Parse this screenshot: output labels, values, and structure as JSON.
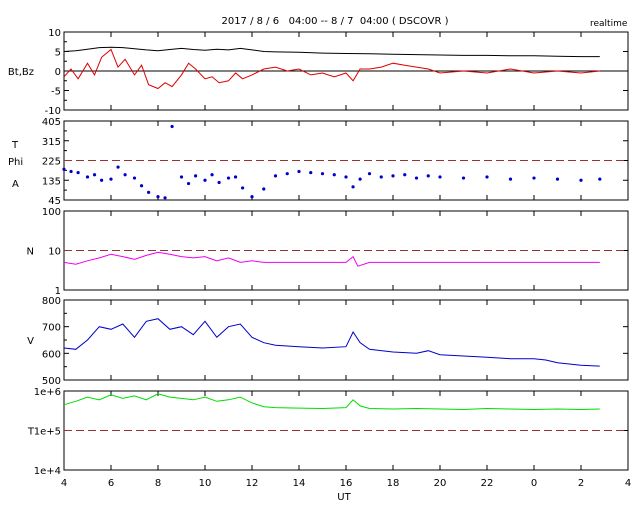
{
  "header": {
    "title": "2017 / 8 / 6   04:00 -- 8 / 7  04:00 ( DSCOVR )",
    "badge": "realtime"
  },
  "chart_data": [
    {
      "type": "line",
      "name": "magnetic-field",
      "ylabel": "Bt,Bz",
      "ylim": [
        -10,
        10
      ],
      "yticks": [
        "10",
        "5",
        "0",
        "-5",
        "-10"
      ],
      "xlim": [
        4,
        28.8
      ],
      "reference_lines": [
        {
          "y": 0,
          "style": "solid",
          "color": "#000000"
        }
      ],
      "series": [
        {
          "color": "#000000",
          "x": [
            4.0,
            4.5,
            5.0,
            5.5,
            6.0,
            6.5,
            7.0,
            7.5,
            8.0,
            8.5,
            9.0,
            9.5,
            10.0,
            10.5,
            11.0,
            11.5,
            12.0,
            12.5,
            13.0,
            14.0,
            15.0,
            16.0,
            17.0,
            18.0,
            19.0,
            20.0,
            21.0,
            22.0,
            23.0,
            24.0,
            25.0,
            26.0,
            26.8
          ],
          "y": [
            5.0,
            5.2,
            5.6,
            6.0,
            6.1,
            6.0,
            5.7,
            5.4,
            5.2,
            5.5,
            5.8,
            5.5,
            5.3,
            5.6,
            5.4,
            5.8,
            5.4,
            5.0,
            4.9,
            4.8,
            4.6,
            4.5,
            4.4,
            4.3,
            4.2,
            4.1,
            4.0,
            4.0,
            3.9,
            3.9,
            3.8,
            3.7,
            3.7
          ]
        },
        {
          "color": "#dd0000",
          "x": [
            4.0,
            4.3,
            4.6,
            5.0,
            5.3,
            5.6,
            6.0,
            6.3,
            6.6,
            7.0,
            7.3,
            7.6,
            8.0,
            8.3,
            8.6,
            9.0,
            9.3,
            9.6,
            10.0,
            10.3,
            10.6,
            11.0,
            11.3,
            11.6,
            12.0,
            12.5,
            13.0,
            13.5,
            14.0,
            14.5,
            15.0,
            15.5,
            16.0,
            16.3,
            16.6,
            17.0,
            17.5,
            18.0,
            18.5,
            19.0,
            19.5,
            20.0,
            21.0,
            22.0,
            23.0,
            24.0,
            25.0,
            26.0,
            26.8
          ],
          "y": [
            -1.5,
            0.5,
            -2.0,
            2.0,
            -1.0,
            3.5,
            5.5,
            1.0,
            3.0,
            -1.0,
            1.5,
            -3.5,
            -4.5,
            -3.0,
            -4.0,
            -1.0,
            2.0,
            0.5,
            -2.0,
            -1.5,
            -3.0,
            -2.5,
            -0.5,
            -2.0,
            -1.0,
            0.5,
            1.0,
            0.0,
            0.5,
            -1.0,
            -0.5,
            -1.5,
            -0.5,
            -2.5,
            0.5,
            0.5,
            1.0,
            2.0,
            1.5,
            1.0,
            0.5,
            -0.5,
            0.0,
            -0.5,
            0.5,
            -0.5,
            0.0,
            -0.5,
            0.0
          ]
        }
      ]
    },
    {
      "type": "scatter",
      "name": "phi-angle",
      "ylabel_lines": [
        "T",
        "Phi",
        "A"
      ],
      "ylim": [
        45,
        405
      ],
      "yticks": [
        "405",
        "315",
        "225",
        "135",
        "45"
      ],
      "xlim": [
        4,
        28.8
      ],
      "reference_lines": [
        {
          "y": 225,
          "style": "dashed",
          "color": "#993333"
        }
      ],
      "series": [
        {
          "color": "#0000cc",
          "x": [
            4.0,
            4.3,
            4.6,
            5.0,
            5.3,
            5.6,
            6.0,
            6.3,
            6.6,
            7.0,
            7.3,
            7.6,
            8.0,
            8.3,
            8.6,
            9.0,
            9.3,
            9.6,
            10.0,
            10.3,
            10.6,
            11.0,
            11.3,
            11.6,
            12.0,
            12.5,
            13.0,
            13.5,
            14.0,
            14.5,
            15.0,
            15.5,
            16.0,
            16.3,
            16.6,
            17.0,
            17.5,
            18.0,
            18.5,
            19.0,
            19.5,
            20.0,
            21.0,
            22.0,
            23.0,
            24.0,
            25.0,
            26.0,
            26.8
          ],
          "y": [
            185,
            175,
            170,
            150,
            160,
            135,
            140,
            195,
            160,
            145,
            110,
            80,
            60,
            55,
            380,
            150,
            120,
            155,
            135,
            160,
            125,
            145,
            150,
            100,
            60,
            95,
            155,
            165,
            175,
            170,
            165,
            160,
            150,
            105,
            140,
            165,
            150,
            155,
            160,
            145,
            155,
            150,
            145,
            150,
            140,
            145,
            140,
            135,
            140
          ]
        }
      ]
    },
    {
      "type": "line",
      "name": "density",
      "ylabel": "N",
      "yscale": "log",
      "ylim": [
        1,
        100
      ],
      "yticks": [
        "100",
        "10",
        "1"
      ],
      "xlim": [
        4,
        28.8
      ],
      "reference_lines": [
        {
          "y": 10,
          "style": "dashed",
          "color": "#993333"
        }
      ],
      "series": [
        {
          "color": "#ee00ee",
          "x": [
            4.0,
            4.5,
            5.0,
            5.5,
            6.0,
            6.5,
            7.0,
            7.5,
            8.0,
            8.5,
            9.0,
            9.5,
            10.0,
            10.5,
            11.0,
            11.5,
            12.0,
            12.5,
            13.0,
            14.0,
            15.0,
            16.0,
            16.3,
            16.5,
            17.0,
            18.0,
            19.0,
            20.0,
            21.0,
            22.0,
            23.0,
            24.0,
            25.0,
            26.0,
            26.8
          ],
          "y": [
            5.0,
            4.5,
            5.5,
            6.5,
            8.0,
            7.0,
            6.0,
            7.5,
            9.0,
            8.0,
            7.0,
            6.5,
            7.0,
            5.5,
            6.5,
            5.0,
            5.5,
            5.0,
            5.0,
            5.0,
            5.0,
            5.0,
            7.0,
            4.0,
            5.0,
            5.0,
            5.0,
            5.0,
            5.0,
            5.0,
            5.0,
            5.0,
            5.0,
            5.0,
            5.0
          ]
        }
      ]
    },
    {
      "type": "line",
      "name": "speed",
      "ylabel": "V",
      "ylim": [
        500,
        800
      ],
      "yticks": [
        "800",
        "700",
        "600",
        "500"
      ],
      "xlim": [
        4,
        28.8
      ],
      "series": [
        {
          "color": "#0000cc",
          "x": [
            4.0,
            4.5,
            5.0,
            5.5,
            6.0,
            6.5,
            7.0,
            7.5,
            8.0,
            8.5,
            9.0,
            9.5,
            10.0,
            10.5,
            11.0,
            11.5,
            12.0,
            12.5,
            13.0,
            14.0,
            15.0,
            16.0,
            16.3,
            16.6,
            17.0,
            18.0,
            19.0,
            19.5,
            20.0,
            21.0,
            22.0,
            23.0,
            24.0,
            24.5,
            25.0,
            26.0,
            26.8
          ],
          "y": [
            620,
            615,
            650,
            700,
            690,
            710,
            660,
            720,
            730,
            690,
            700,
            670,
            720,
            660,
            700,
            710,
            660,
            640,
            630,
            625,
            620,
            625,
            680,
            640,
            615,
            605,
            600,
            610,
            595,
            590,
            585,
            580,
            580,
            575,
            565,
            555,
            552
          ]
        }
      ]
    },
    {
      "type": "line",
      "name": "temperature",
      "ylabel": "T",
      "yscale": "log",
      "ylim": [
        10000,
        1000000
      ],
      "yticks": [
        "1e+6",
        "1e+5",
        "1e+4"
      ],
      "xlim": [
        4,
        28.8
      ],
      "xlabel": "UT",
      "xticks": [
        "4",
        "6",
        "8",
        "10",
        "12",
        "14",
        "16",
        "18",
        "20",
        "22",
        "0",
        "2",
        "4"
      ],
      "reference_lines": [
        {
          "y": 100000,
          "style": "dashed",
          "color": "#993333"
        }
      ],
      "series": [
        {
          "color": "#00dd00",
          "x": [
            4.0,
            4.5,
            5.0,
            5.5,
            6.0,
            6.5,
            7.0,
            7.5,
            8.0,
            8.5,
            9.0,
            9.5,
            10.0,
            10.5,
            11.0,
            11.5,
            12.0,
            12.5,
            13.0,
            14.0,
            15.0,
            16.0,
            16.3,
            16.6,
            17.0,
            18.0,
            19.0,
            20.0,
            21.0,
            22.0,
            23.0,
            24.0,
            25.0,
            26.0,
            26.8
          ],
          "y": [
            450000,
            550000,
            700000,
            600000,
            800000,
            650000,
            750000,
            600000,
            850000,
            700000,
            650000,
            600000,
            700000,
            550000,
            600000,
            700000,
            500000,
            400000,
            380000,
            370000,
            360000,
            380000,
            600000,
            420000,
            360000,
            350000,
            360000,
            350000,
            340000,
            360000,
            350000,
            340000,
            350000,
            340000,
            350000
          ]
        }
      ]
    }
  ]
}
